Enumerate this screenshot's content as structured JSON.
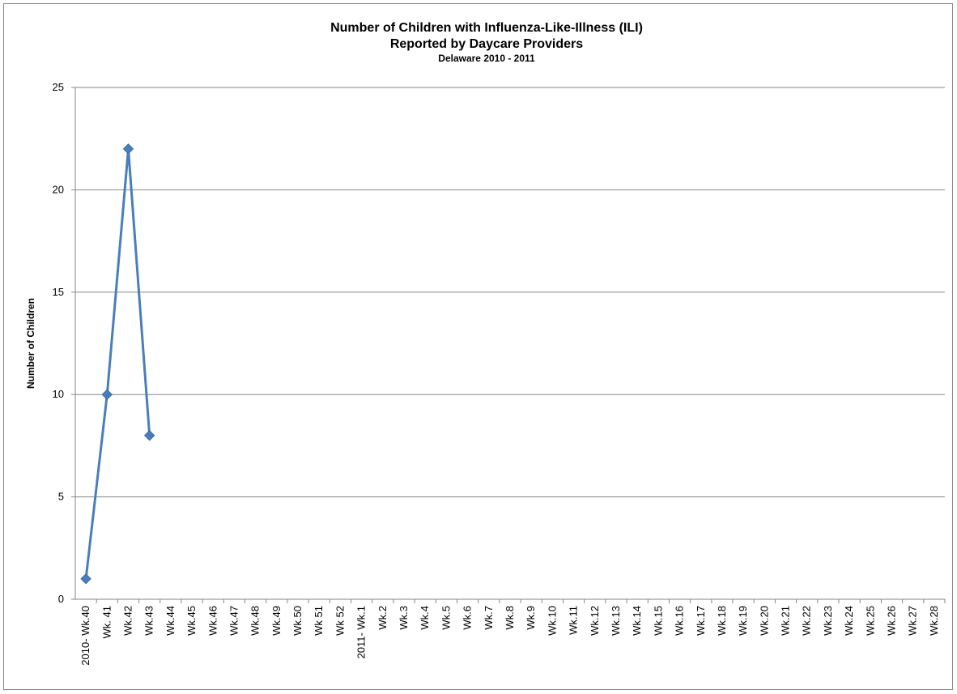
{
  "chart_data": {
    "type": "line",
    "title": "Number of Children with Influenza-Like-Illness (ILI)",
    "subtitle": "Reported by Daycare Providers",
    "subtitle_2": "Delaware 2010 - 2011",
    "y_label": "Number of Children",
    "categories": [
      "2010- Wk.40",
      "Wk. 41",
      "Wk.42",
      "Wk.43",
      "Wk.44",
      "Wk.45",
      "Wk.46",
      "Wk.47",
      "Wk.48",
      "Wk.49",
      "Wk.50",
      "Wk 51",
      "Wk 52",
      "2011- Wk.1",
      "Wk.2",
      "Wk.3",
      "Wk.4",
      "Wk.5",
      "Wk.6",
      "Wk.7",
      "Wk.8",
      "Wk.9",
      "Wk.10",
      "Wk.11",
      "Wk.12",
      "Wk.13",
      "Wk.14",
      "Wk.15",
      "Wk.16",
      "Wk.17",
      "Wk.18",
      "Wk.19",
      "Wk.20",
      "Wk.21",
      "Wk.22",
      "Wk.23",
      "Wk.24",
      "Wk.25",
      "Wk.26",
      "Wk.27",
      "Wk.28"
    ],
    "series": [
      {
        "name": "ILI",
        "color": "#4a7ebb",
        "values": [
          1,
          10,
          22,
          8,
          null,
          null,
          null,
          null,
          null,
          null,
          null,
          null,
          null,
          null,
          null,
          null,
          null,
          null,
          null,
          null,
          null,
          null,
          null,
          null,
          null,
          null,
          null,
          null,
          null,
          null,
          null,
          null,
          null,
          null,
          null,
          null,
          null,
          null,
          null,
          null,
          null
        ]
      }
    ],
    "ylim": [
      0,
      25
    ],
    "yticks": [
      0,
      5,
      10,
      15,
      20,
      25
    ],
    "grid": true
  }
}
